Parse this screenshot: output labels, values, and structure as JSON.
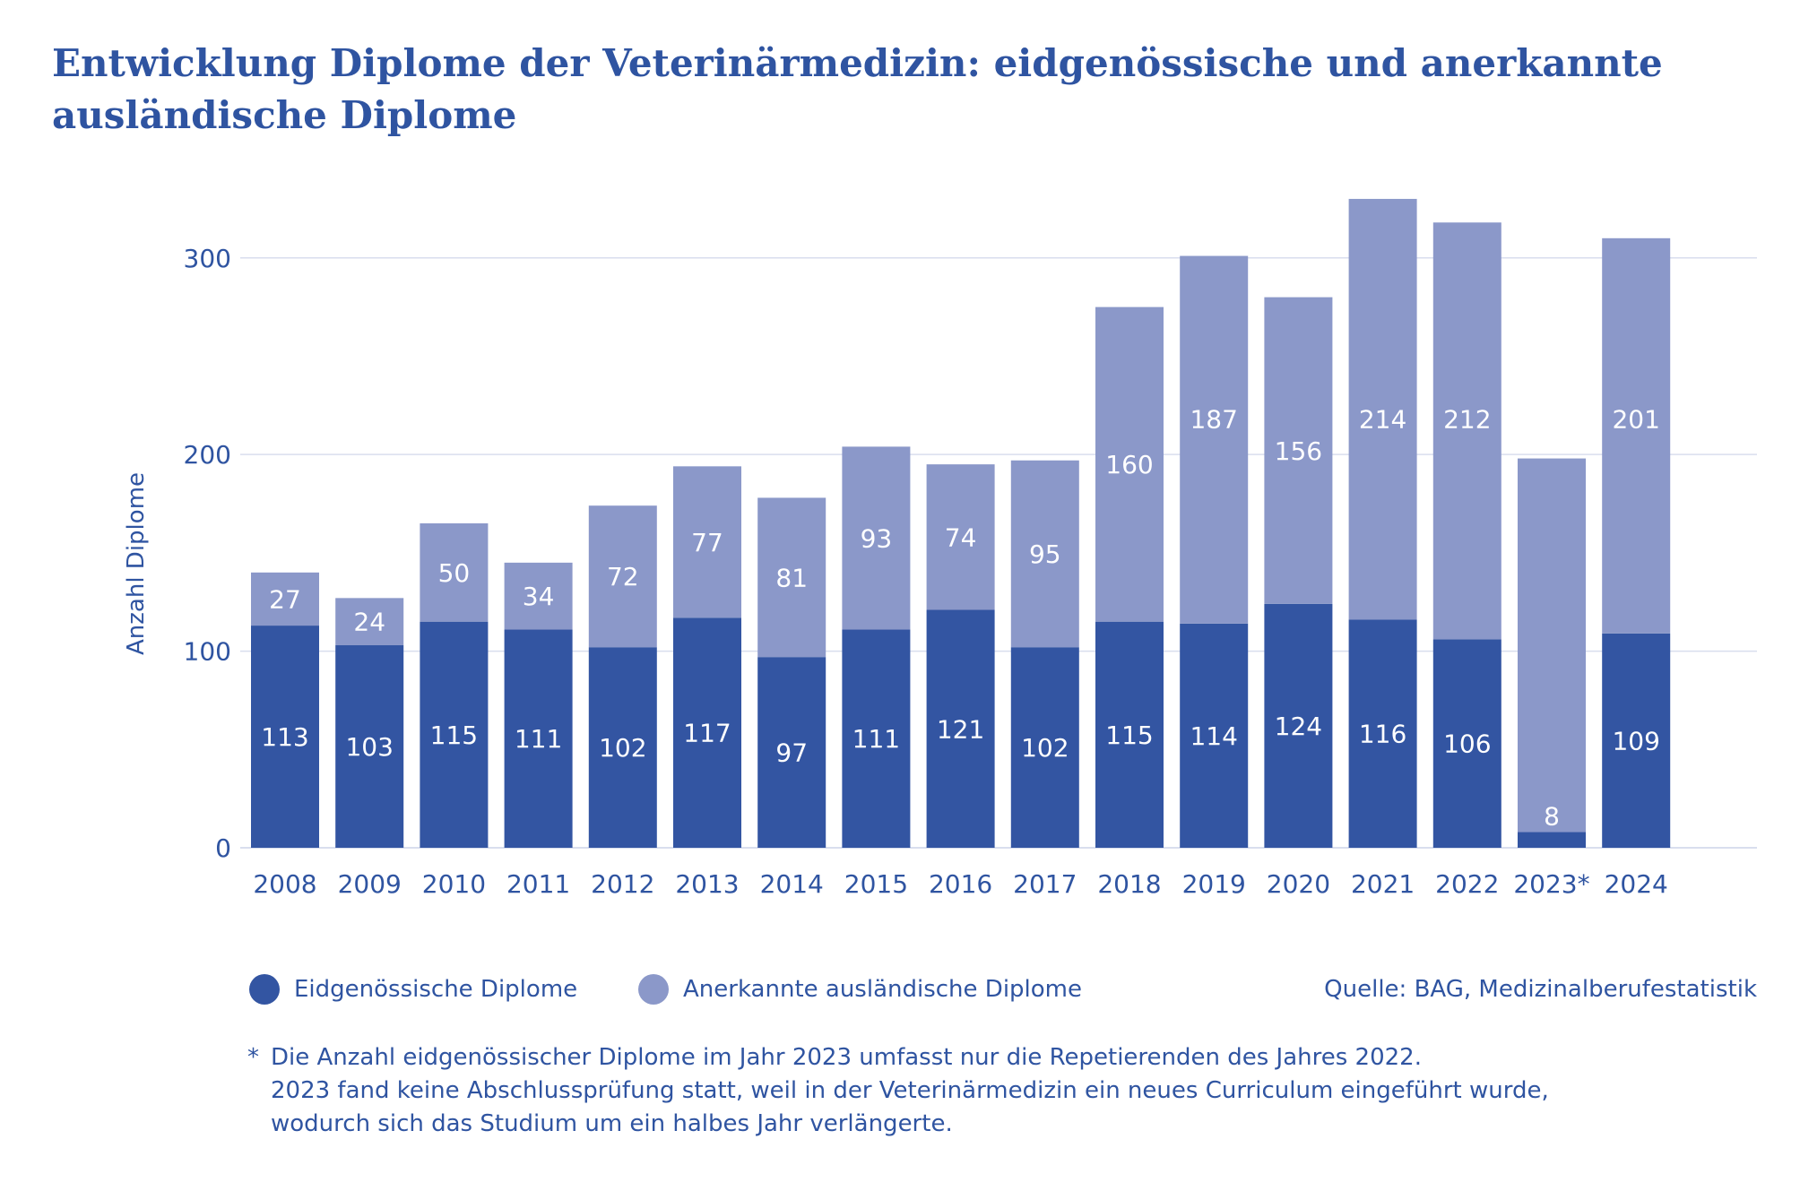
{
  "title": "Entwicklung Diplome der Veterinärmedizin: eidgenössische und anerkannte ausländische Diplome",
  "colors": {
    "primary": "#3355a2",
    "secondary": "#8b98c9",
    "text": "#2f54a1",
    "grid": "#d9deee"
  },
  "legend": {
    "items": [
      {
        "label": "Eidgenössische Diplome",
        "color": "#3355a2"
      },
      {
        "label": "Anerkannte ausländische Diplome",
        "color": "#8b98c9"
      }
    ],
    "source": "Quelle: BAG, Medizinalberufestatistik"
  },
  "footnote": {
    "marker": "*",
    "lines": [
      "Die Anzahl eidgenössischer Diplome im Jahr 2023 umfasst nur die Repetierenden des Jahres 2022.",
      "2023 fand keine Abschlussprüfung statt, weil in der Veterinärmedizin ein neues Curriculum eingeführt wurde,",
      "wodurch sich das Studium um ein halbes Jahr verlängerte."
    ]
  },
  "chart_data": {
    "type": "bar",
    "stacked": true,
    "categories": [
      "2008",
      "2009",
      "2010",
      "2011",
      "2012",
      "2013",
      "2014",
      "2015",
      "2016",
      "2017",
      "2018",
      "2019",
      "2020",
      "2021",
      "2022",
      "2023*",
      "2024"
    ],
    "series": [
      {
        "name": "Eidgenössische Diplome",
        "values": [
          113,
          103,
          115,
          111,
          102,
          117,
          97,
          111,
          121,
          102,
          115,
          114,
          124,
          116,
          106,
          8,
          109
        ]
      },
      {
        "name": "Anerkannte ausländische Diplome",
        "values": [
          27,
          24,
          50,
          34,
          72,
          77,
          81,
          93,
          74,
          95,
          160,
          187,
          156,
          214,
          212,
          190,
          201
        ]
      }
    ],
    "ylabel": "Anzahl Diplome",
    "xlabel": "",
    "ylim": [
      0,
      340
    ],
    "yticks": [
      0,
      100,
      200,
      300
    ],
    "grid": true,
    "legend_position": "bottom"
  }
}
